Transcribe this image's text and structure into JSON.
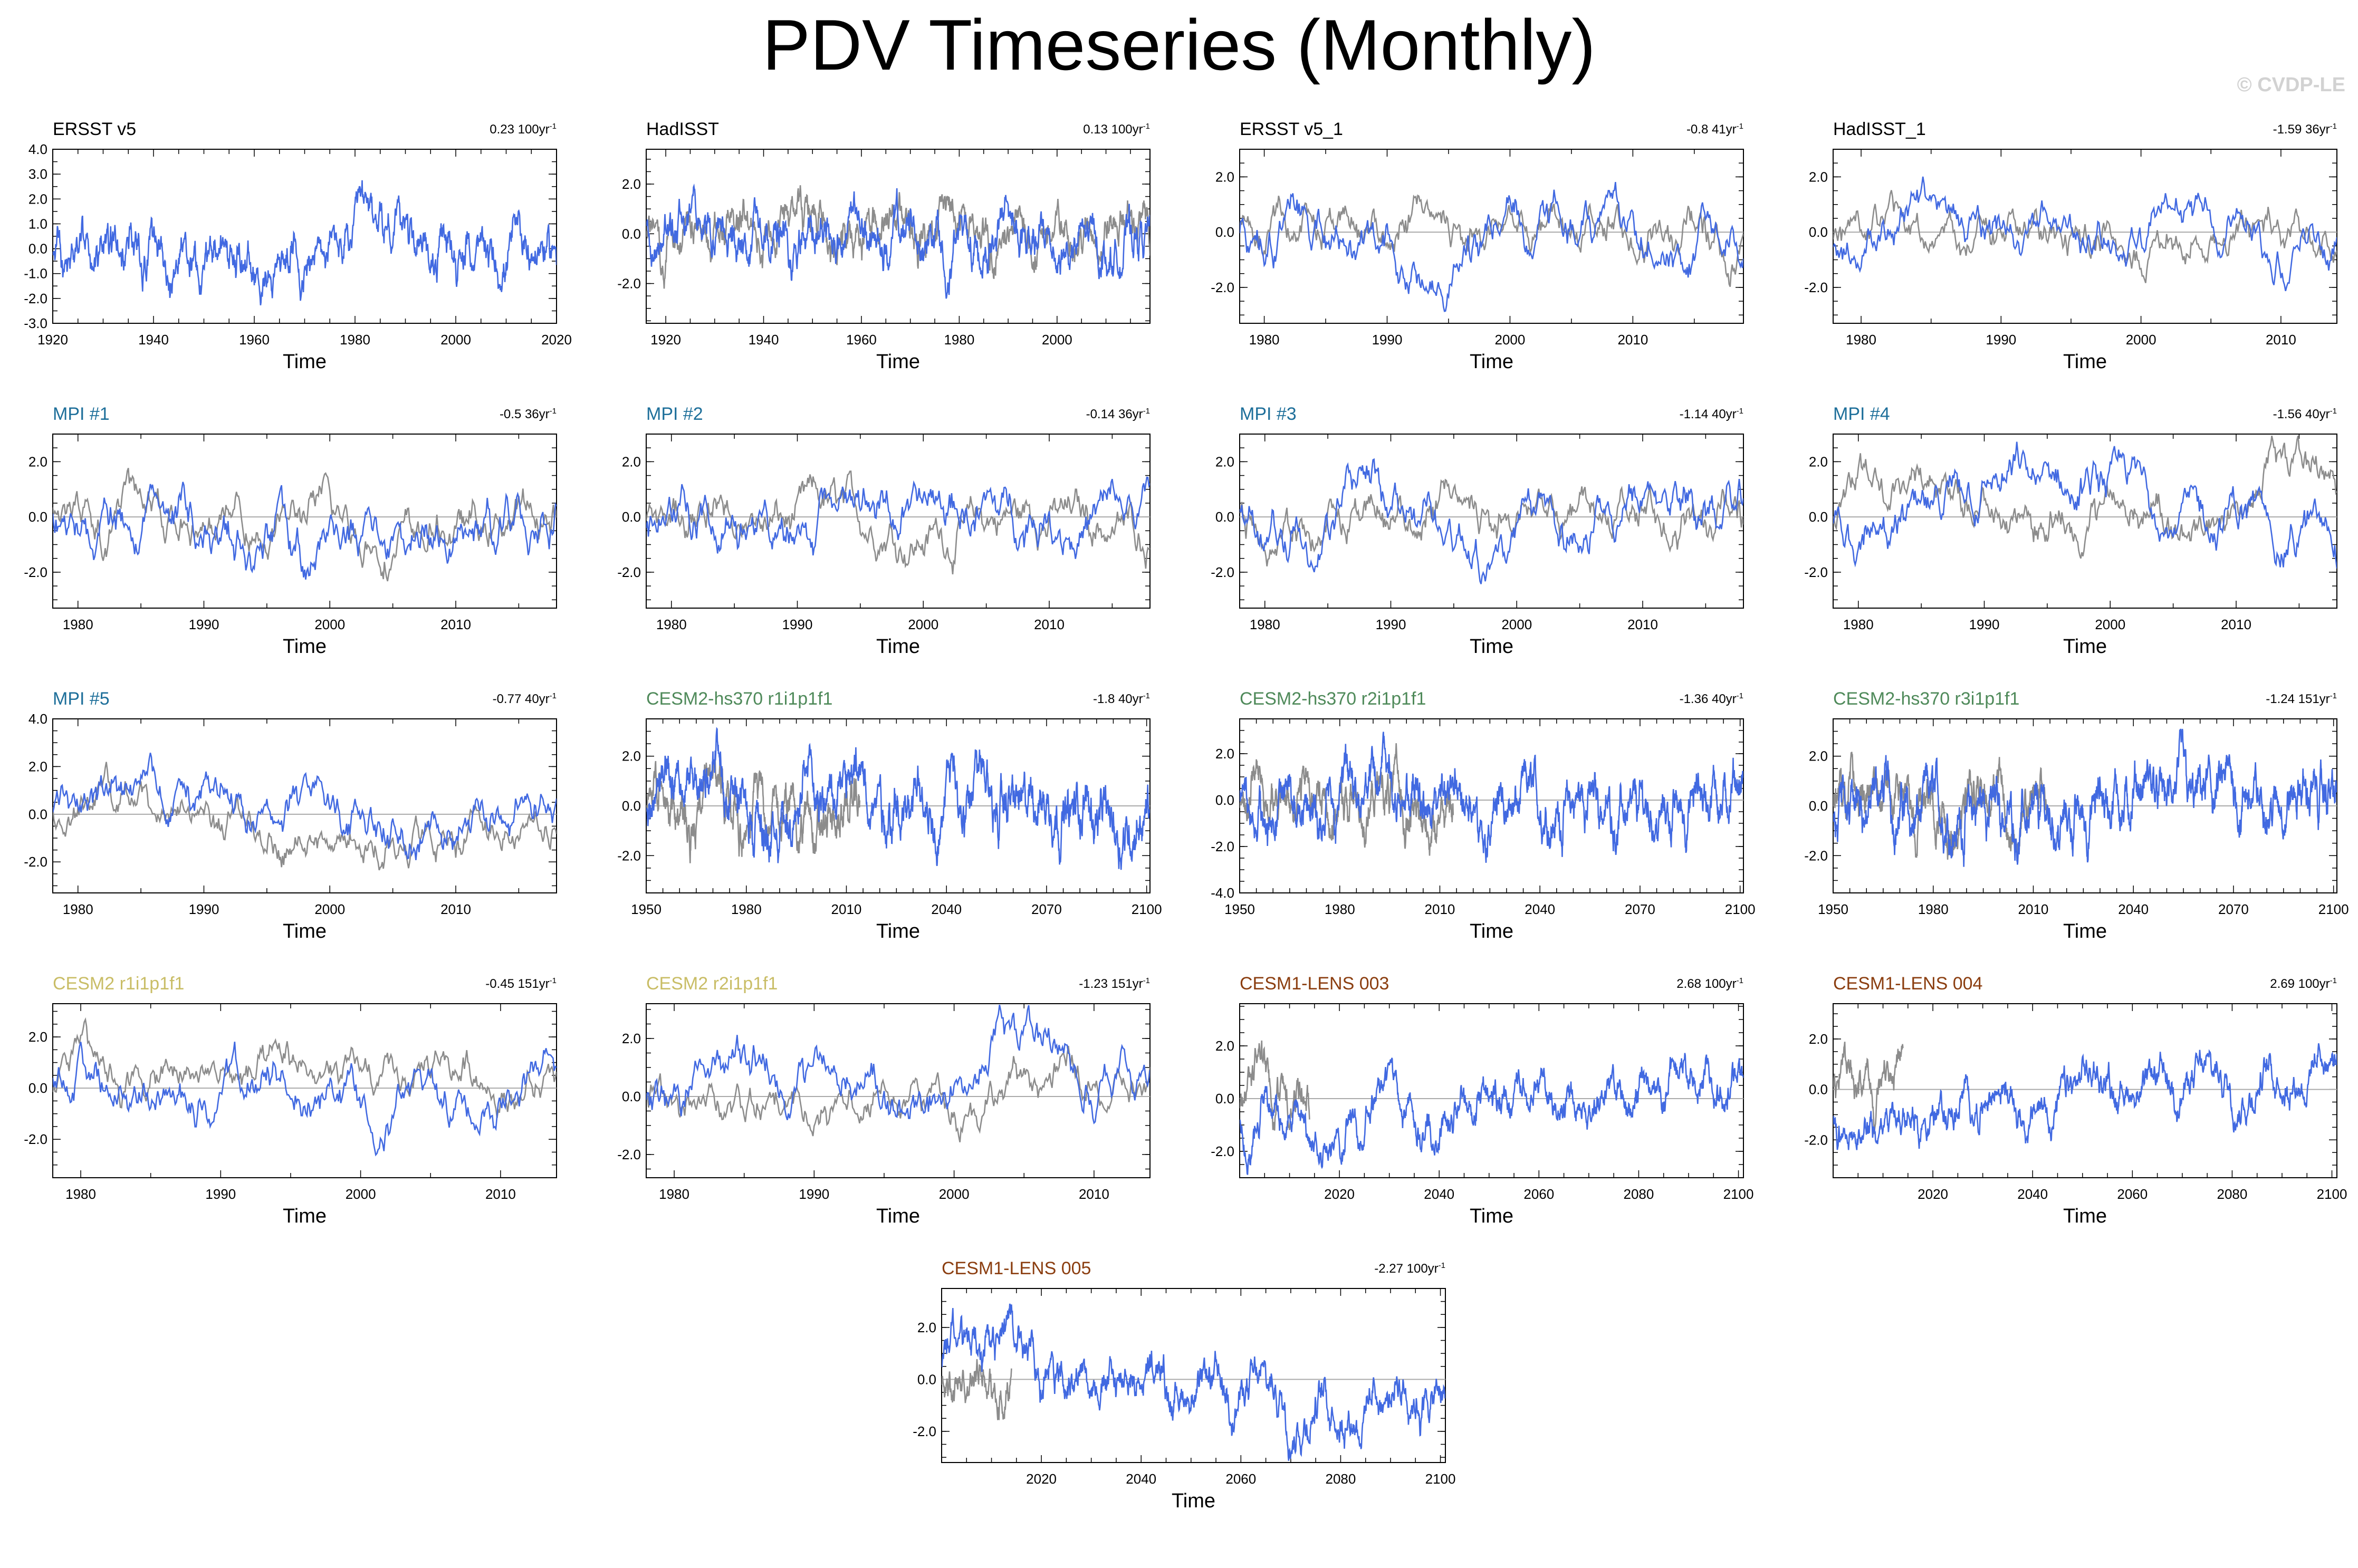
{
  "title": "PDV Timeseries (Monthly)",
  "watermark": "© CVDP-LE",
  "colors": {
    "sim": "#4169e1",
    "obs": "#8c8c8c",
    "zero": "#aaaaaa",
    "title_obs": "#000000",
    "title_mpi": "#1e6f9a",
    "title_hs370": "#4f8a5a",
    "title_cesm2": "#c9bd66",
    "title_lens": "#8b3e10"
  },
  "chart_data": [
    {
      "type": "line",
      "title": "ERSST v5",
      "title_color": "#000000",
      "trend": "0.23 100yr",
      "trend_unit_sup": "-1",
      "xlabel": "Time",
      "xlim": [
        1920,
        2020
      ],
      "xticks": [
        1920,
        1940,
        1960,
        1980,
        2000,
        2020
      ],
      "ylim": [
        -3,
        4
      ],
      "yticks": [
        4.0,
        3.0,
        2.0,
        1.0,
        0.0,
        -1.0,
        -2.0,
        -3.0
      ],
      "obs": false,
      "sim": {
        "amp": 0.95,
        "seed": 1,
        "trend": 0.0,
        "start": 1920,
        "end": 2020
      },
      "zero_line": false
    },
    {
      "type": "line",
      "title": "HadISST",
      "title_color": "#000000",
      "trend": "0.13 100yr",
      "trend_unit_sup": "-1",
      "xlabel": "Time",
      "xlim": [
        1916,
        2019
      ],
      "xticks": [
        1920,
        1940,
        1960,
        1980,
        2000
      ],
      "ylim": [
        -3.6,
        3.4
      ],
      "yticks": [
        2.0,
        0.0,
        -2.0
      ],
      "obs": {
        "amp": 0.9,
        "seed": 2,
        "start": 1916,
        "end": 2019
      },
      "sim": {
        "amp": 0.95,
        "seed": 3,
        "trend": 0.0,
        "start": 1916,
        "end": 2019
      },
      "zero_line": false
    },
    {
      "type": "line",
      "title": "ERSST v5_1",
      "title_color": "#000000",
      "trend": "-0.8 41yr",
      "trend_unit_sup": "-1",
      "xlabel": "Time",
      "xlim": [
        1978,
        2019
      ],
      "xticks": [
        1980,
        1990,
        2000,
        2010
      ],
      "ylim": [
        -3.3,
        3.0
      ],
      "yticks": [
        2.0,
        0.0,
        -2.0
      ],
      "obs": {
        "amp": 0.8,
        "seed": 4,
        "start": 1978,
        "end": 2019
      },
      "sim": {
        "amp": 0.9,
        "seed": 5,
        "trend": 0.0,
        "start": 1978,
        "end": 2019
      },
      "zero_line": true
    },
    {
      "type": "line",
      "title": "HadISST_1",
      "title_color": "#000000",
      "trend": "-1.59 36yr",
      "trend_unit_sup": "-1",
      "xlabel": "Time",
      "xlim": [
        1978,
        2014
      ],
      "xticks": [
        1980,
        1990,
        2000,
        2010
      ],
      "ylim": [
        -3.3,
        3.0
      ],
      "yticks": [
        2.0,
        0.0,
        -2.0
      ],
      "obs": {
        "amp": 0.8,
        "seed": 6,
        "start": 1978,
        "end": 2014
      },
      "sim": {
        "amp": 0.9,
        "seed": 7,
        "trend": 0.0,
        "start": 1978,
        "end": 2014
      },
      "zero_line": true
    },
    {
      "type": "line",
      "title": "MPI #1",
      "title_color": "#1e6f9a",
      "trend": "-0.5 36yr",
      "trend_unit_sup": "-1",
      "xlabel": "Time",
      "xlim": [
        1978,
        2018
      ],
      "xticks": [
        1980,
        1990,
        2000,
        2010
      ],
      "ylim": [
        -3.3,
        3.0
      ],
      "yticks": [
        2.0,
        0.0,
        -2.0
      ],
      "obs": {
        "amp": 0.85,
        "seed": 8,
        "start": 1978,
        "end": 2018
      },
      "sim": {
        "amp": 0.95,
        "seed": 9,
        "trend": 0.0,
        "start": 1978,
        "end": 2018
      },
      "zero_line": true
    },
    {
      "type": "line",
      "title": "MPI #2",
      "title_color": "#1e6f9a",
      "trend": "-0.14 36yr",
      "trend_unit_sup": "-1",
      "xlabel": "Time",
      "xlim": [
        1978,
        2018
      ],
      "xticks": [
        1980,
        1990,
        2000,
        2010
      ],
      "ylim": [
        -3.3,
        3.0
      ],
      "yticks": [
        2.0,
        0.0,
        -2.0
      ],
      "obs": {
        "amp": 0.85,
        "seed": 10,
        "start": 1978,
        "end": 2018
      },
      "sim": {
        "amp": 0.95,
        "seed": 11,
        "trend": 0.0,
        "start": 1978,
        "end": 2018
      },
      "zero_line": true
    },
    {
      "type": "line",
      "title": "MPI #3",
      "title_color": "#1e6f9a",
      "trend": "-1.14 40yr",
      "trend_unit_sup": "-1",
      "xlabel": "Time",
      "xlim": [
        1978,
        2018
      ],
      "xticks": [
        1980,
        1990,
        2000,
        2010
      ],
      "ylim": [
        -3.3,
        3.0
      ],
      "yticks": [
        2.0,
        0.0,
        -2.0
      ],
      "obs": {
        "amp": 0.85,
        "seed": 12,
        "start": 1978,
        "end": 2018
      },
      "sim": {
        "amp": 0.95,
        "seed": 13,
        "trend": 0.0,
        "start": 1978,
        "end": 2018
      },
      "zero_line": true
    },
    {
      "type": "line",
      "title": "MPI #4",
      "title_color": "#1e6f9a",
      "trend": "-1.56 40yr",
      "trend_unit_sup": "-1",
      "xlabel": "Time",
      "xlim": [
        1978,
        2018
      ],
      "xticks": [
        1980,
        1990,
        2000,
        2010
      ],
      "ylim": [
        -3.3,
        3.0
      ],
      "yticks": [
        2.0,
        0.0,
        -2.0
      ],
      "obs": {
        "amp": 0.85,
        "seed": 14,
        "start": 1978,
        "end": 2018
      },
      "sim": {
        "amp": 0.95,
        "seed": 15,
        "trend": 0.0,
        "start": 1978,
        "end": 2018
      },
      "zero_line": true
    },
    {
      "type": "line",
      "title": "MPI #5",
      "title_color": "#1e6f9a",
      "trend": "-0.77 40yr",
      "trend_unit_sup": "-1",
      "xlabel": "Time",
      "xlim": [
        1978,
        2018
      ],
      "xticks": [
        1980,
        1990,
        2000,
        2010
      ],
      "ylim": [
        -3.3,
        4.0
      ],
      "yticks": [
        4.0,
        2.0,
        0.0,
        -2.0
      ],
      "obs": {
        "amp": 0.85,
        "seed": 16,
        "start": 1978,
        "end": 2018
      },
      "sim": {
        "amp": 1.0,
        "seed": 17,
        "trend": 0.0,
        "start": 1978,
        "end": 2018
      },
      "zero_line": true
    },
    {
      "type": "line",
      "title": "CESM2-hs370 r1i1p1f1",
      "title_color": "#4f8a5a",
      "trend": "-1.8 40yr",
      "trend_unit_sup": "-1",
      "xlabel": "Time",
      "xlim": [
        1950,
        2101
      ],
      "xticks": [
        1950,
        1980,
        2010,
        2040,
        2070,
        2100
      ],
      "ylim": [
        -3.5,
        3.5
      ],
      "yticks": [
        2.0,
        0.0,
        -2.0
      ],
      "obs": {
        "amp": 0.95,
        "seed": 18,
        "start": 1950,
        "end": 2014
      },
      "sim": {
        "amp": 1.0,
        "seed": 19,
        "trend": 0.0,
        "start": 1950,
        "end": 2101
      },
      "zero_line": true
    },
    {
      "type": "line",
      "title": "CESM2-hs370 r2i1p1f1",
      "title_color": "#4f8a5a",
      "trend": "-1.36 40yr",
      "trend_unit_sup": "-1",
      "xlabel": "Time",
      "xlim": [
        1950,
        2101
      ],
      "xticks": [
        1950,
        1980,
        2010,
        2040,
        2070,
        2100
      ],
      "ylim": [
        -4.0,
        3.5
      ],
      "yticks": [
        2.0,
        0.0,
        -2.0,
        -4.0
      ],
      "obs": {
        "amp": 0.95,
        "seed": 20,
        "start": 1950,
        "end": 2014
      },
      "sim": {
        "amp": 1.0,
        "seed": 21,
        "trend": 0.0,
        "start": 1950,
        "end": 2101
      },
      "zero_line": true
    },
    {
      "type": "line",
      "title": "CESM2-hs370 r3i1p1f1",
      "title_color": "#4f8a5a",
      "trend": "-1.24 151yr",
      "trend_unit_sup": "-1",
      "xlabel": "Time",
      "xlim": [
        1950,
        2101
      ],
      "xticks": [
        1950,
        1980,
        2010,
        2040,
        2070,
        2100
      ],
      "ylim": [
        -3.5,
        3.5
      ],
      "yticks": [
        2.0,
        0.0,
        -2.0
      ],
      "obs": {
        "amp": 0.95,
        "seed": 22,
        "start": 1950,
        "end": 2014
      },
      "sim": {
        "amp": 1.0,
        "seed": 23,
        "trend": 0.0,
        "start": 1950,
        "end": 2101
      },
      "zero_line": true
    },
    {
      "type": "line",
      "title": "CESM2 r1i1p1f1",
      "title_color": "#c9bd66",
      "trend": "-0.45 151yr",
      "trend_unit_sup": "-1",
      "xlabel": "Time",
      "xlim": [
        1978,
        2014
      ],
      "xticks": [
        1980,
        1990,
        2000,
        2010
      ],
      "ylim": [
        -3.5,
        3.3
      ],
      "yticks": [
        2.0,
        0.0,
        -2.0
      ],
      "obs": {
        "amp": 0.85,
        "seed": 24,
        "start": 1978,
        "end": 2014
      },
      "sim": {
        "amp": 0.95,
        "seed": 25,
        "trend": 0.0,
        "start": 1978,
        "end": 2014
      },
      "zero_line": true
    },
    {
      "type": "line",
      "title": "CESM2 r2i1p1f1",
      "title_color": "#c9bd66",
      "trend": "-1.23 151yr",
      "trend_unit_sup": "-1",
      "xlabel": "Time",
      "xlim": [
        1978,
        2014
      ],
      "xticks": [
        1980,
        1990,
        2000,
        2010
      ],
      "ylim": [
        -2.8,
        3.2
      ],
      "yticks": [
        2.0,
        0.0,
        -2.0
      ],
      "obs": {
        "amp": 0.8,
        "seed": 26,
        "start": 1978,
        "end": 2014
      },
      "sim": {
        "amp": 0.9,
        "seed": 27,
        "trend": 0.0,
        "start": 1978,
        "end": 2014
      },
      "zero_line": true
    },
    {
      "type": "line",
      "title": "CESM1-LENS 003",
      "title_color": "#8b3e10",
      "trend": "2.68 100yr",
      "trend_unit_sup": "-1",
      "xlabel": "Time",
      "xlim": [
        2000,
        2101
      ],
      "xticks": [
        2020,
        2040,
        2060,
        2080,
        2100
      ],
      "ylim": [
        -3.0,
        3.6
      ],
      "yticks": [
        2.0,
        0.0,
        -2.0
      ],
      "obs": {
        "amp": 0.9,
        "seed": 28,
        "start": 2000,
        "end": 2014
      },
      "sim": {
        "amp": 0.75,
        "seed": 29,
        "trend": 2.5,
        "start": 2000,
        "end": 2101
      },
      "zero_line": true
    },
    {
      "type": "line",
      "title": "CESM1-LENS 004",
      "title_color": "#8b3e10",
      "trend": "2.69 100yr",
      "trend_unit_sup": "-1",
      "xlabel": "Time",
      "xlim": [
        2000,
        2101
      ],
      "xticks": [
        2020,
        2040,
        2060,
        2080,
        2100
      ],
      "ylim": [
        -3.5,
        3.4
      ],
      "yticks": [
        2.0,
        0.0,
        -2.0
      ],
      "obs": {
        "amp": 0.9,
        "seed": 30,
        "start": 2000,
        "end": 2014
      },
      "sim": {
        "amp": 0.75,
        "seed": 31,
        "trend": 2.5,
        "start": 2000,
        "end": 2101
      },
      "zero_line": true
    },
    {
      "type": "line",
      "title": "CESM1-LENS 005",
      "title_color": "#8b3e10",
      "trend": "-2.27 100yr",
      "trend_unit_sup": "-1",
      "xlabel": "Time",
      "xlim": [
        2000,
        2101
      ],
      "xticks": [
        2020,
        2040,
        2060,
        2080,
        2100
      ],
      "ylim": [
        -3.2,
        3.5
      ],
      "yticks": [
        2.0,
        0.0,
        -2.0
      ],
      "obs": {
        "amp": 0.9,
        "seed": 32,
        "start": 2000,
        "end": 2014
      },
      "sim": {
        "amp": 0.85,
        "seed": 33,
        "trend": -1.9,
        "start": 2000,
        "end": 2101
      },
      "zero_line": true
    }
  ]
}
